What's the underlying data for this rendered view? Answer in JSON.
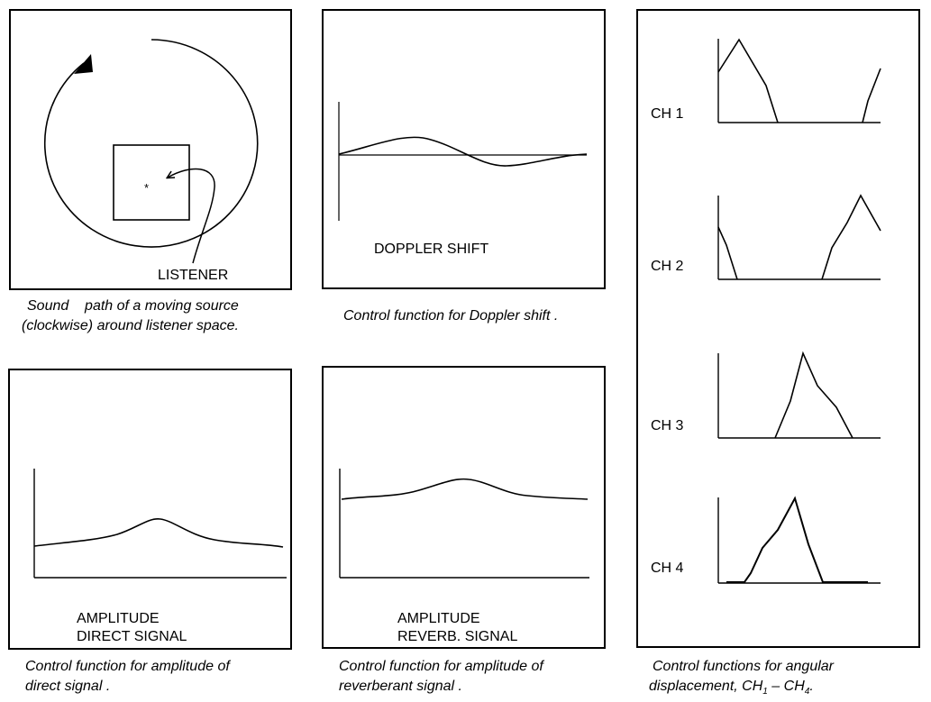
{
  "panels": {
    "sound_path": {
      "label": "LISTENER",
      "listener_mark": "*",
      "caption_line1": "Sound    path of a moving source",
      "caption_line2": "(clockwise) around listener space."
    },
    "doppler": {
      "label": "DOPPLER SHIFT",
      "caption": "Control function for Doppler shift ."
    },
    "direct": {
      "label_line1": "AMPLITUDE",
      "label_line2": "DIRECT SIGNAL",
      "caption_line1": "Control function for amplitude of",
      "caption_line2": "direct signal ."
    },
    "reverb": {
      "label_line1": "AMPLITUDE",
      "label_line2": "REVERB. SIGNAL",
      "caption_line1": "Control function for amplitude of",
      "caption_line2": "reverberant signal ."
    },
    "channels": {
      "items": [
        {
          "label": "CH 1"
        },
        {
          "label": "CH 2"
        },
        {
          "label": "CH 3"
        },
        {
          "label": "CH 4"
        }
      ],
      "caption_line1": "Control functions for angular",
      "caption_line2_prefix": "displacement, CH",
      "sub1": "1",
      "dash": " – CH",
      "sub4": "4",
      "period": "."
    }
  },
  "colors": {
    "stroke": "#000000",
    "background": "#ffffff"
  }
}
